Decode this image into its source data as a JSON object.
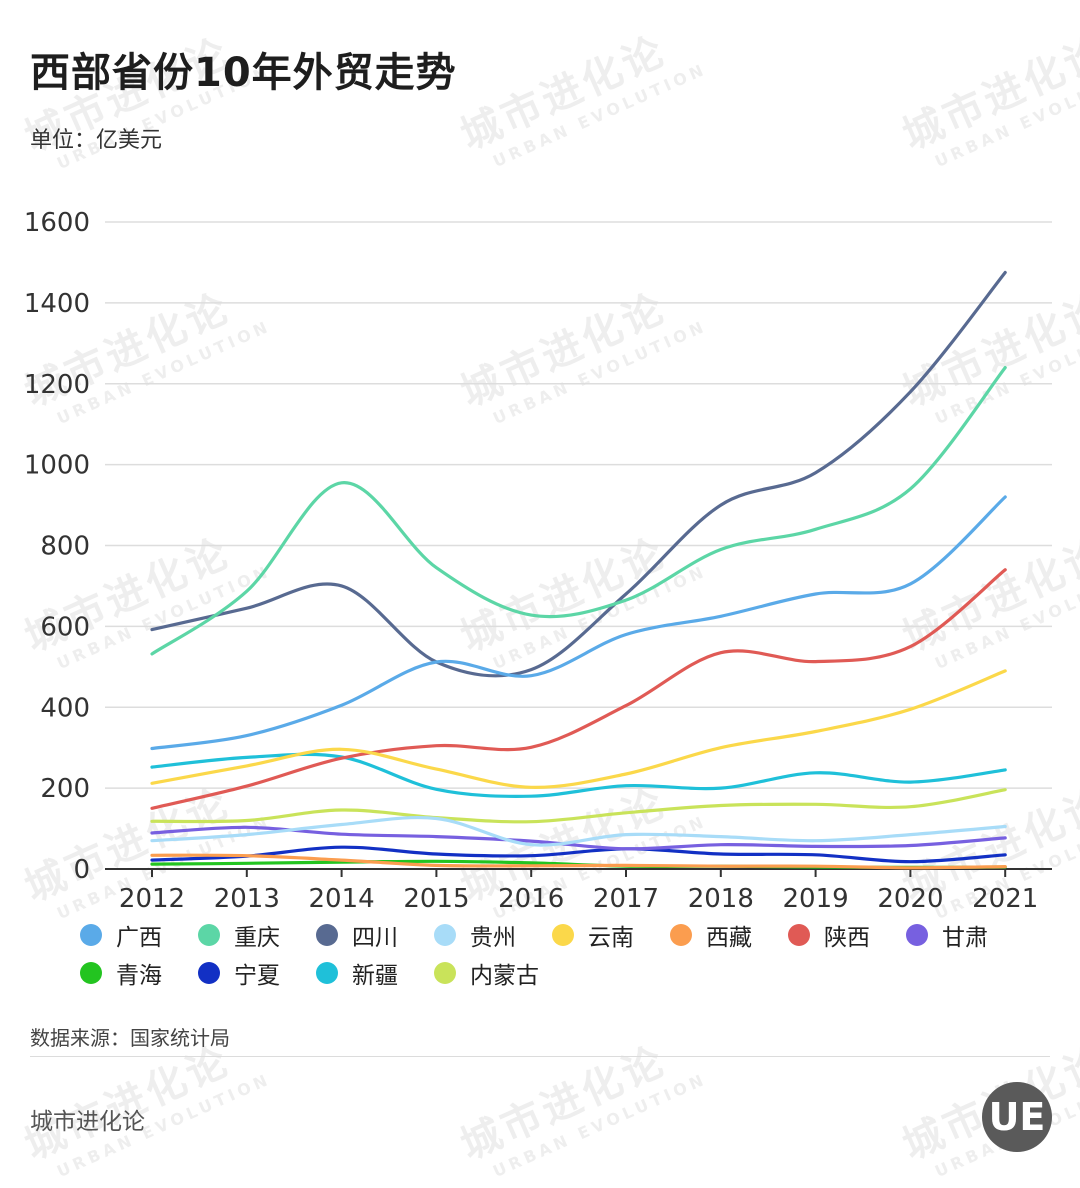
{
  "title": "西部省份10年外贸走势",
  "unit": "单位：亿美元",
  "source": "数据来源：国家统计局",
  "brand": "城市进化论",
  "logo_text": "UE",
  "watermark": {
    "cn": "城市进化论",
    "en": "URBAN EVOLUTION"
  },
  "chart_data": {
    "type": "line",
    "title": "西部省份10年外贸走势",
    "ylabel": "单位：亿美元",
    "xlabel": "",
    "ylim": [
      0,
      1600
    ],
    "yticks": [
      0,
      200,
      400,
      600,
      800,
      1000,
      1200,
      1400,
      1600
    ],
    "grid": true,
    "legend_position": "bottom",
    "categories": [
      "2012",
      "2013",
      "2014",
      "2015",
      "2016",
      "2017",
      "2018",
      "2019",
      "2020",
      "2021"
    ],
    "series": [
      {
        "name": "广西",
        "color": "#5aaae8",
        "values": [
          298,
          330,
          405,
          512,
          478,
          580,
          625,
          680,
          705,
          920
        ]
      },
      {
        "name": "重庆",
        "color": "#5cd6a6",
        "values": [
          532,
          687,
          955,
          745,
          628,
          665,
          790,
          840,
          940,
          1240
        ]
      },
      {
        "name": "四川",
        "color": "#586a91",
        "values": [
          592,
          645,
          700,
          512,
          493,
          680,
          900,
          980,
          1180,
          1475
        ]
      },
      {
        "name": "贵州",
        "color": "#a8dcf8",
        "values": [
          70,
          85,
          110,
          125,
          60,
          85,
          80,
          70,
          85,
          105
        ]
      },
      {
        "name": "云南",
        "color": "#fbd84a",
        "values": [
          212,
          255,
          296,
          247,
          202,
          235,
          300,
          340,
          395,
          490
        ]
      },
      {
        "name": "西藏",
        "color": "#fb9d4f",
        "values": [
          34,
          33,
          22,
          9,
          8,
          9,
          7,
          7,
          3,
          6
        ]
      },
      {
        "name": "陕西",
        "color": "#e05a55",
        "values": [
          150,
          205,
          274,
          305,
          301,
          404,
          535,
          513,
          550,
          740
        ]
      },
      {
        "name": "甘肃",
        "color": "#7760e0",
        "values": [
          89,
          103,
          86,
          80,
          69,
          50,
          60,
          56,
          58,
          77
        ]
      },
      {
        "name": "青海",
        "color": "#23c420",
        "values": [
          12,
          14,
          17,
          19,
          15,
          7,
          7,
          5,
          4,
          5
        ]
      },
      {
        "name": "宁夏",
        "color": "#1230c4",
        "values": [
          22,
          32,
          54,
          37,
          33,
          50,
          37,
          35,
          18,
          35
        ]
      },
      {
        "name": "新疆",
        "color": "#1fc0d9",
        "values": [
          252,
          276,
          277,
          197,
          180,
          206,
          200,
          238,
          215,
          245
        ]
      },
      {
        "name": "内蒙古",
        "color": "#c9e35a",
        "values": [
          118,
          120,
          146,
          127,
          117,
          139,
          157,
          160,
          154,
          196
        ]
      }
    ]
  }
}
